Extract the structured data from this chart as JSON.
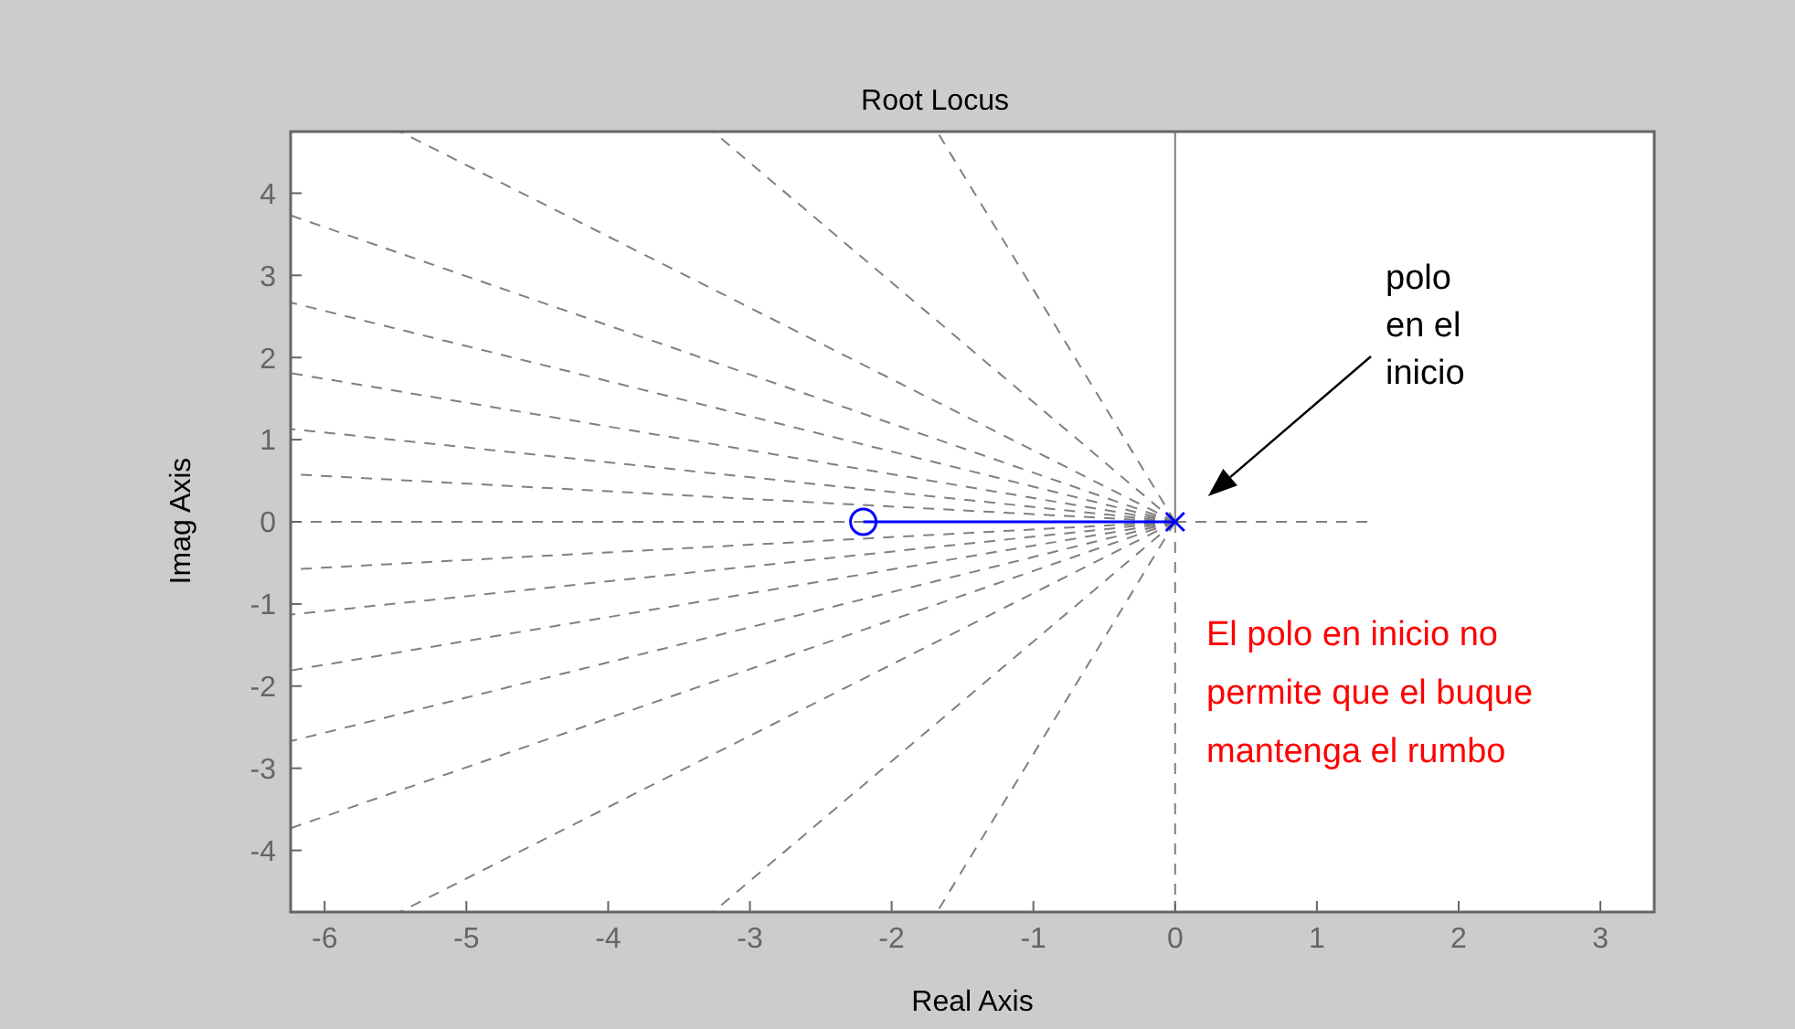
{
  "chart_data": {
    "type": "line",
    "title": "Root Locus",
    "xlabel": "Real Axis",
    "ylabel": "Imag Axis",
    "xlim": [
      -6.24,
      3.38
    ],
    "xticks": [
      -6,
      -5,
      -4,
      -3,
      -2,
      -1,
      0,
      1,
      2,
      3
    ],
    "ylim": [
      -4.75,
      4.75
    ],
    "yticks": [
      -4,
      -3,
      -2,
      -1,
      0,
      1,
      2,
      3,
      4
    ],
    "grid": false,
    "annotations": [
      "polo\nen el\ninicio",
      "El polo en inicio no\npermite que el buque\nmantenga el rumbo"
    ],
    "series": [
      {
        "color": "#808080",
        "line_style": "dashed",
        "x": [
          -6.24,
          1.38
        ],
        "values": [
          0,
          0
        ]
      },
      {
        "color": "#808080",
        "line_style": "solid",
        "x": [
          0,
          0
        ],
        "values": [
          0,
          4.75
        ]
      },
      {
        "color": "#808080",
        "line_style": "dashed",
        "x": [
          0,
          0
        ],
        "values": [
          0,
          -4.75
        ]
      },
      {
        "color": "#808080",
        "line_style": "dashed",
        "x": [
          0,
          -6.24
        ],
        "values": [
          0,
          3.73
        ]
      },
      {
        "color": "#808080",
        "line_style": "dashed",
        "x": [
          0,
          -6.24
        ],
        "values": [
          0,
          2.67
        ]
      },
      {
        "color": "#808080",
        "line_style": "dashed",
        "x": [
          0,
          -6.24
        ],
        "values": [
          0,
          1.81
        ]
      },
      {
        "color": "#808080",
        "line_style": "dashed",
        "x": [
          0,
          -6.24
        ],
        "values": [
          0,
          1.13
        ]
      },
      {
        "color": "#808080",
        "line_style": "dashed",
        "x": [
          0,
          -6.24
        ],
        "values": [
          0,
          0.58
        ]
      },
      {
        "color": "#808080",
        "line_style": "dashed",
        "x": [
          0,
          -5.47
        ],
        "values": [
          0,
          4.75
        ]
      },
      {
        "color": "#808080",
        "line_style": "dashed",
        "x": [
          0,
          -3.26
        ],
        "values": [
          0,
          4.75
        ]
      },
      {
        "color": "#808080",
        "line_style": "dashed",
        "x": [
          0,
          -1.68
        ],
        "values": [
          0,
          4.75
        ]
      },
      {
        "color": "#808080",
        "line_style": "dashed",
        "x": [
          0,
          -6.24
        ],
        "values": [
          0,
          -3.73
        ]
      },
      {
        "color": "#808080",
        "line_style": "dashed",
        "x": [
          0,
          -6.24
        ],
        "values": [
          0,
          -2.67
        ]
      },
      {
        "color": "#808080",
        "line_style": "dashed",
        "x": [
          0,
          -6.24
        ],
        "values": [
          0,
          -1.81
        ]
      },
      {
        "color": "#808080",
        "line_style": "dashed",
        "x": [
          0,
          -6.24
        ],
        "values": [
          0,
          -1.13
        ]
      },
      {
        "color": "#808080",
        "line_style": "dashed",
        "x": [
          0,
          -6.24
        ],
        "values": [
          0,
          -0.58
        ]
      },
      {
        "color": "#808080",
        "line_style": "dashed",
        "x": [
          0,
          -5.47
        ],
        "values": [
          0,
          -4.75
        ]
      },
      {
        "color": "#808080",
        "line_style": "dashed",
        "x": [
          0,
          -3.26
        ],
        "values": [
          0,
          -4.75
        ]
      },
      {
        "color": "#808080",
        "line_style": "dashed",
        "x": [
          0,
          -1.68
        ],
        "values": [
          0,
          -4.75
        ]
      },
      {
        "color": "#0000ff",
        "line_style": "solid",
        "x": [
          -2.2,
          0
        ],
        "values": [
          0,
          0
        ]
      },
      {
        "type": "scatter",
        "color": "#0000ff",
        "marker": "circle",
        "x": [
          -2.2
        ],
        "values": [
          0
        ]
      },
      {
        "type": "scatter",
        "color": "#0000ff",
        "marker": "cross",
        "x": [
          0
        ],
        "values": [
          0
        ]
      }
    ]
  }
}
